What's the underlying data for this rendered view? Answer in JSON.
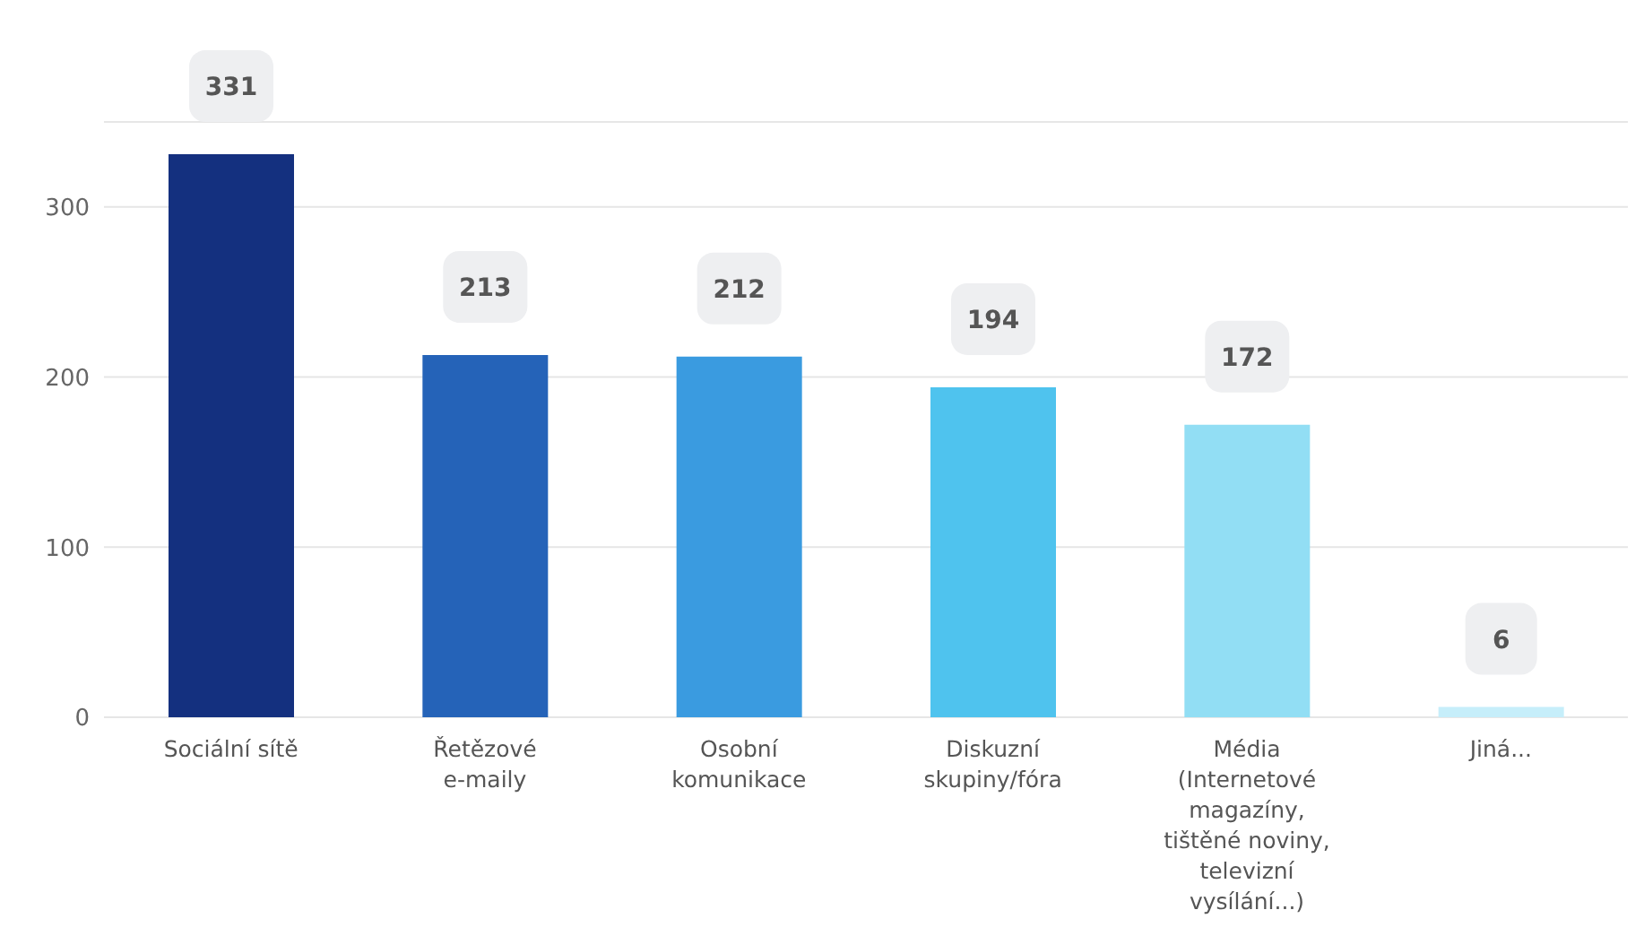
{
  "chart_data": {
    "type": "bar",
    "categories": [
      "Sociální sítě",
      "Řetězové e-maily",
      "Osobní komunikace",
      "Diskuzní skupiny/fóra",
      "Média (Internetové magazíny, tištěné noviny, televizní vysílání...)",
      "Jiná..."
    ],
    "values": [
      331,
      213,
      212,
      194,
      172,
      6
    ],
    "colors": [
      "#14307f",
      "#2563b8",
      "#3a9be0",
      "#4fc3ee",
      "#92def4",
      "#c6eefa"
    ],
    "ylim": [
      0,
      350
    ],
    "yticks": [
      0,
      100,
      200,
      300
    ],
    "grid": "y",
    "data_labels": true
  }
}
